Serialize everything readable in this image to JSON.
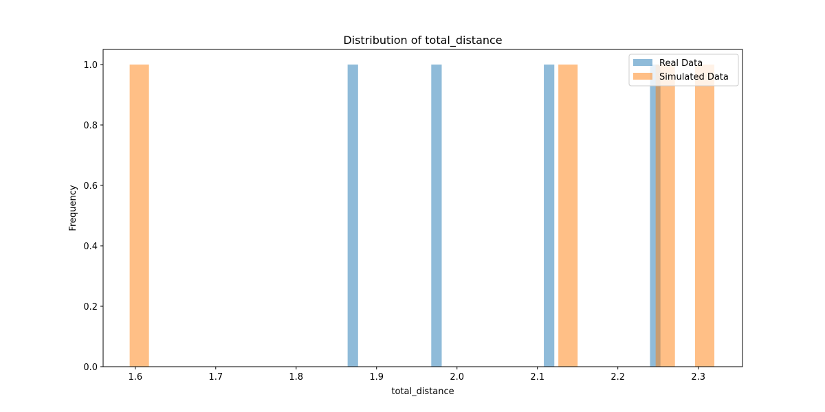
{
  "chart_data": {
    "type": "bar",
    "title": "Distribution of total_distance",
    "xlabel": "total_distance",
    "ylabel": "Frequency",
    "xlim": [
      1.56,
      2.355
    ],
    "ylim": [
      0,
      1.05
    ],
    "xticks": [
      "1.6",
      "1.7",
      "1.8",
      "1.9",
      "2.0",
      "2.1",
      "2.2",
      "2.3"
    ],
    "yticks": [
      "0.0",
      "0.2",
      "0.4",
      "0.6",
      "0.8",
      "1.0"
    ],
    "grid": false,
    "legend_position": "top-right",
    "series": [
      {
        "name": "Real Data",
        "color": "#1f77b4",
        "opacity": 0.5,
        "bars": [
          {
            "x0": 1.864,
            "x1": 1.877,
            "value": 1
          },
          {
            "x0": 1.968,
            "x1": 1.981,
            "value": 1
          },
          {
            "x0": 2.108,
            "x1": 2.121,
            "value": 1
          },
          {
            "x0": 2.24,
            "x1": 2.253,
            "value": 1
          }
        ]
      },
      {
        "name": "Simulated Data",
        "color": "#ff7f0e",
        "opacity": 0.5,
        "bars": [
          {
            "x0": 1.593,
            "x1": 1.617,
            "value": 1
          },
          {
            "x0": 2.126,
            "x1": 2.15,
            "value": 1
          },
          {
            "x0": 2.247,
            "x1": 2.271,
            "value": 1
          },
          {
            "x0": 2.296,
            "x1": 2.32,
            "value": 1
          }
        ]
      }
    ]
  }
}
